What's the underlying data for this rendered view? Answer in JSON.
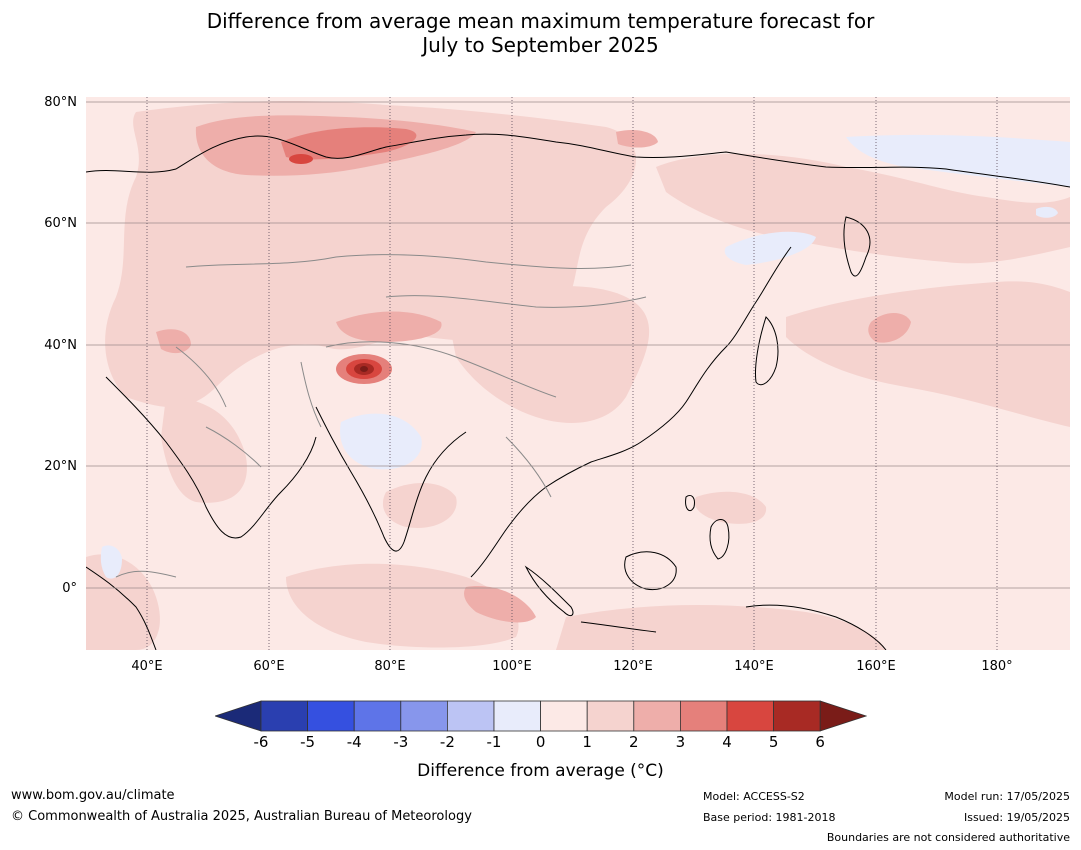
{
  "title_line1": "Difference from average mean maximum temperature forecast for",
  "title_line2": "July to September 2025",
  "lat_labels": [
    "80°N",
    "60°N",
    "40°N",
    "20°N",
    "0°"
  ],
  "lon_labels": [
    "40°E",
    "60°E",
    "80°E",
    "100°E",
    "120°E",
    "140°E",
    "160°E",
    "180°"
  ],
  "colorbar": {
    "ticks": [
      "-6",
      "-5",
      "-4",
      "-3",
      "-2",
      "-1",
      "0",
      "1",
      "2",
      "3",
      "4",
      "5",
      "6"
    ],
    "colors": [
      "#1b2a78",
      "#2a3fb0",
      "#3550e0",
      "#5e74e8",
      "#8796ec",
      "#bcc4f4",
      "#e8ecfb",
      "#fce9e6",
      "#f5d3cf",
      "#eeaeaa",
      "#e5807b",
      "#d8463f",
      "#a82a24",
      "#7a1c18"
    ],
    "title": "Difference from average (°C)"
  },
  "footer": {
    "url": "www.bom.gov.au/climate",
    "copyright": "© Commonwealth of Australia 2025, Australian Bureau of Meteorology",
    "model": "Model: ACCESS-S2",
    "base_period": "Base period: 1981-2018",
    "model_run": "Model run: 17/05/2025",
    "issued": "Issued: 19/05/2025",
    "disclaimer": "Boundaries are not considered authoritative"
  }
}
